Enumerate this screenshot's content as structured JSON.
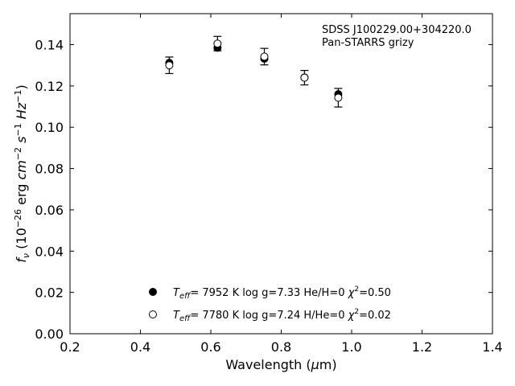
{
  "chart_data": {
    "type": "scatter",
    "xlabel": "Wavelength (μm)",
    "ylabel": "f_ν (10^-26 erg cm^-2 s^-1 Hz^-1)",
    "xlim": [
      0.2,
      1.4
    ],
    "ylim": [
      0.0,
      0.155
    ],
    "xticks": [
      0.2,
      0.4,
      0.6,
      0.8,
      1.0,
      1.2,
      1.4
    ],
    "xtick_labels": [
      "0.2",
      "0.4",
      "0.6",
      "0.8",
      "1.0",
      "1.2",
      "1.4"
    ],
    "yticks": [
      0.0,
      0.02,
      0.04,
      0.06,
      0.08,
      0.1,
      0.12,
      0.14
    ],
    "ytick_labels": [
      "0.00",
      "0.02",
      "0.04",
      "0.06",
      "0.08",
      "0.10",
      "0.12",
      "0.14"
    ],
    "grid": false,
    "annotations": [
      "SDSS J100229.00+304220.0",
      "Pan-STARRS grizy"
    ],
    "observed": {
      "x": [
        0.482,
        0.619,
        0.752,
        0.866,
        0.962
      ],
      "y": [
        0.13,
        0.1405,
        0.1342,
        0.124,
        0.1143
      ],
      "yerr": [
        0.004,
        0.0035,
        0.004,
        0.0035,
        0.0045
      ]
    },
    "series": [
      {
        "name": "T_eff = 7952 K  log g=7.33  He/H=0  χ²=0.50",
        "marker": "filled-circle",
        "x": [
          0.482,
          0.619,
          0.752,
          0.866,
          0.962
        ],
        "y": [
          0.1312,
          0.1385,
          0.1332,
          0.1241,
          0.116
        ]
      },
      {
        "name": "T_eff = 7780 K  log g=7.24  H/He=0  χ²=0.02",
        "marker": "open-circle",
        "x": [
          0.482,
          0.619,
          0.752,
          0.866,
          0.962
        ],
        "y": [
          0.13,
          0.1405,
          0.1342,
          0.124,
          0.1143
        ]
      }
    ],
    "legend_placement": "lower-center",
    "legend": {
      "entry1": {
        "teff_value": "=  7952 K  log g=7.33  He/H=0  ",
        "chi_value": "=0.50"
      },
      "entry2": {
        "teff_value": "=  7780 K  log g=7.24  H/He=0  ",
        "chi_value": "=0.02"
      }
    }
  }
}
